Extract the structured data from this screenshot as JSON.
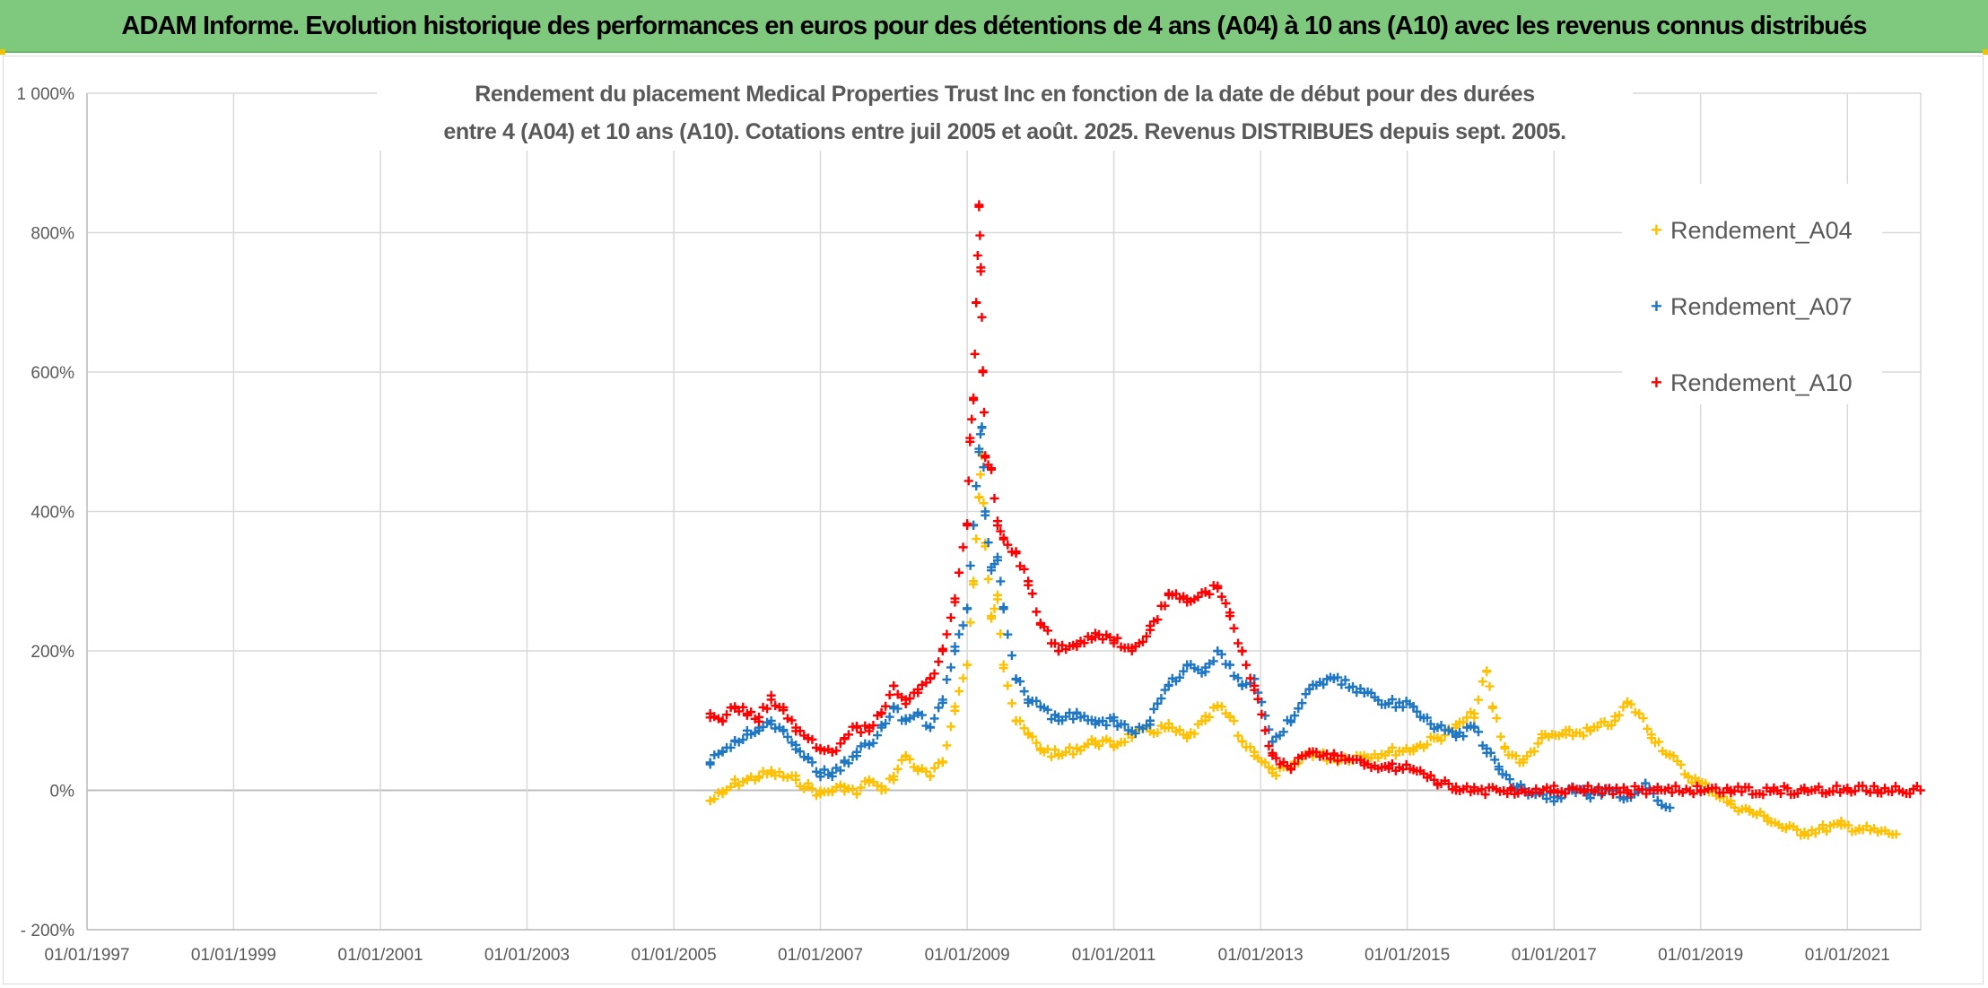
{
  "banner": {
    "title": "ADAM Informe. Evolution historique des performances en euros pour des détentions de 4 ans (A04) à 10 ans (A10) avec les revenus connus distribués"
  },
  "colors": {
    "banner_bg": "#7fc97f",
    "A04": "#ffc000",
    "A07": "#1f77c4",
    "A10": "#ff0000",
    "grid": "#d9d9d9",
    "text": "#595959"
  },
  "chart_data": {
    "type": "scatter",
    "marker": "plus",
    "title_lines": [
      "Rendement du placement Medical Properties Trust Inc en fonction de la date de début pour des durées",
      "entre 4 (A04) et 10 ans (A10). Cotations entre juil 2005 et août. 2025. Revenus DISTRIBUES depuis sept. 2005."
    ],
    "xlabel": "",
    "ylabel": "",
    "x_axis": {
      "type": "date",
      "range": [
        "1997-01-01",
        "2022-01-01"
      ],
      "tick_labels": [
        "01/01/1997",
        "01/01/1999",
        "01/01/2001",
        "01/01/2003",
        "01/01/2005",
        "01/01/2007",
        "01/01/2009",
        "01/01/2011",
        "01/01/2013",
        "01/01/2015",
        "01/01/2017",
        "01/01/2019",
        "01/01/2021"
      ]
    },
    "y_axis": {
      "unit": "%",
      "range": [
        -200,
        1000
      ],
      "tick_values": [
        -200,
        0,
        200,
        400,
        600,
        800,
        1000
      ],
      "tick_labels": [
        "- 200%",
        "0%",
        "200%",
        "400%",
        "600%",
        "800%",
        "1 000%"
      ]
    },
    "grid": true,
    "legend_position": "right",
    "series": [
      {
        "name": "Rendement_A04",
        "color": "#ffc000",
        "points": [
          [
            "2005-07-01",
            -15
          ],
          [
            "2005-09-01",
            -5
          ],
          [
            "2005-11-01",
            10
          ],
          [
            "2006-01-01",
            15
          ],
          [
            "2006-03-01",
            20
          ],
          [
            "2006-05-01",
            25
          ],
          [
            "2006-07-01",
            20
          ],
          [
            "2006-09-01",
            15
          ],
          [
            "2006-11-01",
            5
          ],
          [
            "2007-01-01",
            -5
          ],
          [
            "2007-03-01",
            0
          ],
          [
            "2007-05-01",
            5
          ],
          [
            "2007-07-01",
            -5
          ],
          [
            "2007-09-01",
            15
          ],
          [
            "2007-11-01",
            0
          ],
          [
            "2008-01-01",
            20
          ],
          [
            "2008-03-01",
            50
          ],
          [
            "2008-05-01",
            30
          ],
          [
            "2008-07-01",
            20
          ],
          [
            "2008-09-01",
            40
          ],
          [
            "2008-11-01",
            120
          ],
          [
            "2009-01-01",
            180
          ],
          [
            "2009-02-01",
            300
          ],
          [
            "2009-03-01",
            420
          ],
          [
            "2009-03-15",
            480
          ],
          [
            "2009-04-01",
            350
          ],
          [
            "2009-05-01",
            250
          ],
          [
            "2009-06-01",
            280
          ],
          [
            "2009-07-01",
            180
          ],
          [
            "2009-09-01",
            100
          ],
          [
            "2009-11-01",
            80
          ],
          [
            "2010-01-01",
            60
          ],
          [
            "2010-04-01",
            50
          ],
          [
            "2010-07-01",
            60
          ],
          [
            "2010-10-01",
            70
          ],
          [
            "2011-01-01",
            65
          ],
          [
            "2011-04-01",
            80
          ],
          [
            "2011-07-01",
            85
          ],
          [
            "2011-10-01",
            90
          ],
          [
            "2012-01-01",
            75
          ],
          [
            "2012-04-01",
            100
          ],
          [
            "2012-06-01",
            120
          ],
          [
            "2012-08-01",
            105
          ],
          [
            "2012-10-01",
            70
          ],
          [
            "2012-12-01",
            55
          ],
          [
            "2013-03-01",
            25
          ],
          [
            "2013-06-01",
            30
          ],
          [
            "2013-09-01",
            55
          ],
          [
            "2014-01-01",
            45
          ],
          [
            "2014-06-01",
            50
          ],
          [
            "2014-10-01",
            55
          ],
          [
            "2015-02-01",
            60
          ],
          [
            "2015-06-01",
            75
          ],
          [
            "2015-09-01",
            90
          ],
          [
            "2015-12-01",
            110
          ],
          [
            "2016-02-01",
            170
          ],
          [
            "2016-03-01",
            120
          ],
          [
            "2016-05-01",
            60
          ],
          [
            "2016-08-01",
            40
          ],
          [
            "2016-11-01",
            75
          ],
          [
            "2017-03-01",
            80
          ],
          [
            "2017-07-01",
            85
          ],
          [
            "2017-11-01",
            100
          ],
          [
            "2018-01-01",
            125
          ],
          [
            "2018-03-01",
            110
          ],
          [
            "2018-05-01",
            80
          ],
          [
            "2018-08-01",
            50
          ],
          [
            "2018-11-01",
            20
          ],
          [
            "2019-03-01",
            0
          ],
          [
            "2019-06-01",
            -20
          ],
          [
            "2019-09-01",
            -30
          ],
          [
            "2019-12-01",
            -40
          ],
          [
            "2020-03-01",
            -55
          ],
          [
            "2020-06-01",
            -60
          ],
          [
            "2020-09-01",
            -55
          ],
          [
            "2020-12-01",
            -50
          ],
          [
            "2021-03-01",
            -55
          ],
          [
            "2021-06-01",
            -60
          ],
          [
            "2021-09-01",
            -63
          ]
        ]
      },
      {
        "name": "Rendement_A07",
        "color": "#1f77c4",
        "points": [
          [
            "2005-07-01",
            40
          ],
          [
            "2005-09-01",
            55
          ],
          [
            "2005-11-01",
            70
          ],
          [
            "2006-01-01",
            80
          ],
          [
            "2006-03-01",
            90
          ],
          [
            "2006-05-01",
            95
          ],
          [
            "2006-07-01",
            85
          ],
          [
            "2006-09-01",
            65
          ],
          [
            "2006-11-01",
            45
          ],
          [
            "2007-01-01",
            25
          ],
          [
            "2007-03-01",
            20
          ],
          [
            "2007-05-01",
            40
          ],
          [
            "2007-07-01",
            55
          ],
          [
            "2007-09-01",
            65
          ],
          [
            "2007-11-01",
            90
          ],
          [
            "2008-01-01",
            120
          ],
          [
            "2008-03-01",
            100
          ],
          [
            "2008-05-01",
            110
          ],
          [
            "2008-07-01",
            90
          ],
          [
            "2008-09-01",
            130
          ],
          [
            "2008-11-01",
            200
          ],
          [
            "2009-01-01",
            260
          ],
          [
            "2009-02-01",
            380
          ],
          [
            "2009-03-01",
            490
          ],
          [
            "2009-03-15",
            520
          ],
          [
            "2009-04-01",
            400
          ],
          [
            "2009-05-01",
            320
          ],
          [
            "2009-06-01",
            330
          ],
          [
            "2009-07-01",
            260
          ],
          [
            "2009-09-01",
            160
          ],
          [
            "2009-11-01",
            130
          ],
          [
            "2010-01-01",
            120
          ],
          [
            "2010-04-01",
            100
          ],
          [
            "2010-07-01",
            110
          ],
          [
            "2010-10-01",
            95
          ],
          [
            "2011-01-01",
            100
          ],
          [
            "2011-04-01",
            85
          ],
          [
            "2011-07-01",
            100
          ],
          [
            "2011-10-01",
            150
          ],
          [
            "2012-01-01",
            180
          ],
          [
            "2012-04-01",
            170
          ],
          [
            "2012-06-01",
            200
          ],
          [
            "2012-08-01",
            180
          ],
          [
            "2012-10-01",
            150
          ],
          [
            "2012-12-01",
            160
          ],
          [
            "2013-03-01",
            70
          ],
          [
            "2013-06-01",
            100
          ],
          [
            "2013-09-01",
            145
          ],
          [
            "2014-01-01",
            160
          ],
          [
            "2014-06-01",
            140
          ],
          [
            "2014-10-01",
            125
          ],
          [
            "2015-02-01",
            120
          ],
          [
            "2015-06-01",
            90
          ],
          [
            "2015-09-01",
            80
          ],
          [
            "2015-12-01",
            90
          ],
          [
            "2016-02-01",
            60
          ],
          [
            "2016-04-01",
            30
          ],
          [
            "2016-07-01",
            5
          ],
          [
            "2016-10-01",
            -5
          ],
          [
            "2017-01-01",
            -10
          ],
          [
            "2017-04-01",
            0
          ],
          [
            "2017-07-01",
            -5
          ],
          [
            "2017-10-01",
            0
          ],
          [
            "2018-01-01",
            -10
          ],
          [
            "2018-04-01",
            10
          ],
          [
            "2018-06-01",
            -15
          ],
          [
            "2018-08-01",
            -25
          ]
        ]
      },
      {
        "name": "Rendement_A10",
        "color": "#ff0000",
        "points": [
          [
            "2005-07-01",
            110
          ],
          [
            "2005-09-01",
            100
          ],
          [
            "2005-11-01",
            120
          ],
          [
            "2006-01-01",
            110
          ],
          [
            "2006-03-01",
            105
          ],
          [
            "2006-05-01",
            130
          ],
          [
            "2006-07-01",
            115
          ],
          [
            "2006-09-01",
            90
          ],
          [
            "2006-11-01",
            75
          ],
          [
            "2007-01-01",
            60
          ],
          [
            "2007-03-01",
            55
          ],
          [
            "2007-05-01",
            75
          ],
          [
            "2007-07-01",
            90
          ],
          [
            "2007-09-01",
            85
          ],
          [
            "2007-11-01",
            110
          ],
          [
            "2008-01-01",
            150
          ],
          [
            "2008-03-01",
            130
          ],
          [
            "2008-05-01",
            140
          ],
          [
            "2008-07-01",
            160
          ],
          [
            "2008-09-01",
            200
          ],
          [
            "2008-11-01",
            270
          ],
          [
            "2009-01-01",
            380
          ],
          [
            "2009-01-15",
            500
          ],
          [
            "2009-02-01",
            560
          ],
          [
            "2009-02-15",
            700
          ],
          [
            "2009-03-01",
            840
          ],
          [
            "2009-03-10",
            750
          ],
          [
            "2009-03-20",
            600
          ],
          [
            "2009-04-01",
            480
          ],
          [
            "2009-05-01",
            460
          ],
          [
            "2009-06-01",
            380
          ],
          [
            "2009-07-01",
            360
          ],
          [
            "2009-09-01",
            340
          ],
          [
            "2009-11-01",
            300
          ],
          [
            "2010-01-01",
            240
          ],
          [
            "2010-04-01",
            200
          ],
          [
            "2010-07-01",
            210
          ],
          [
            "2010-10-01",
            220
          ],
          [
            "2011-01-01",
            215
          ],
          [
            "2011-04-01",
            200
          ],
          [
            "2011-07-01",
            230
          ],
          [
            "2011-10-01",
            280
          ],
          [
            "2012-01-01",
            270
          ],
          [
            "2012-04-01",
            285
          ],
          [
            "2012-06-01",
            290
          ],
          [
            "2012-08-01",
            250
          ],
          [
            "2012-10-01",
            200
          ],
          [
            "2012-12-01",
            150
          ],
          [
            "2013-03-01",
            50
          ],
          [
            "2013-06-01",
            30
          ],
          [
            "2013-09-01",
            55
          ],
          [
            "2014-01-01",
            50
          ],
          [
            "2014-06-01",
            40
          ],
          [
            "2014-10-01",
            35
          ],
          [
            "2015-02-01",
            30
          ],
          [
            "2015-06-01",
            10
          ],
          [
            "2015-09-01",
            5
          ],
          [
            "2015-12-01",
            0
          ],
          [
            "2016-06-01",
            0
          ],
          [
            "2017-01-01",
            0
          ],
          [
            "2017-06-01",
            0
          ],
          [
            "2018-01-01",
            0
          ],
          [
            "2018-06-01",
            0
          ],
          [
            "2019-01-01",
            0
          ],
          [
            "2019-06-01",
            0
          ],
          [
            "2020-01-01",
            0
          ],
          [
            "2020-06-01",
            0
          ],
          [
            "2021-01-01",
            0
          ],
          [
            "2021-06-01",
            0
          ],
          [
            "2021-12-31",
            0
          ]
        ]
      }
    ]
  }
}
